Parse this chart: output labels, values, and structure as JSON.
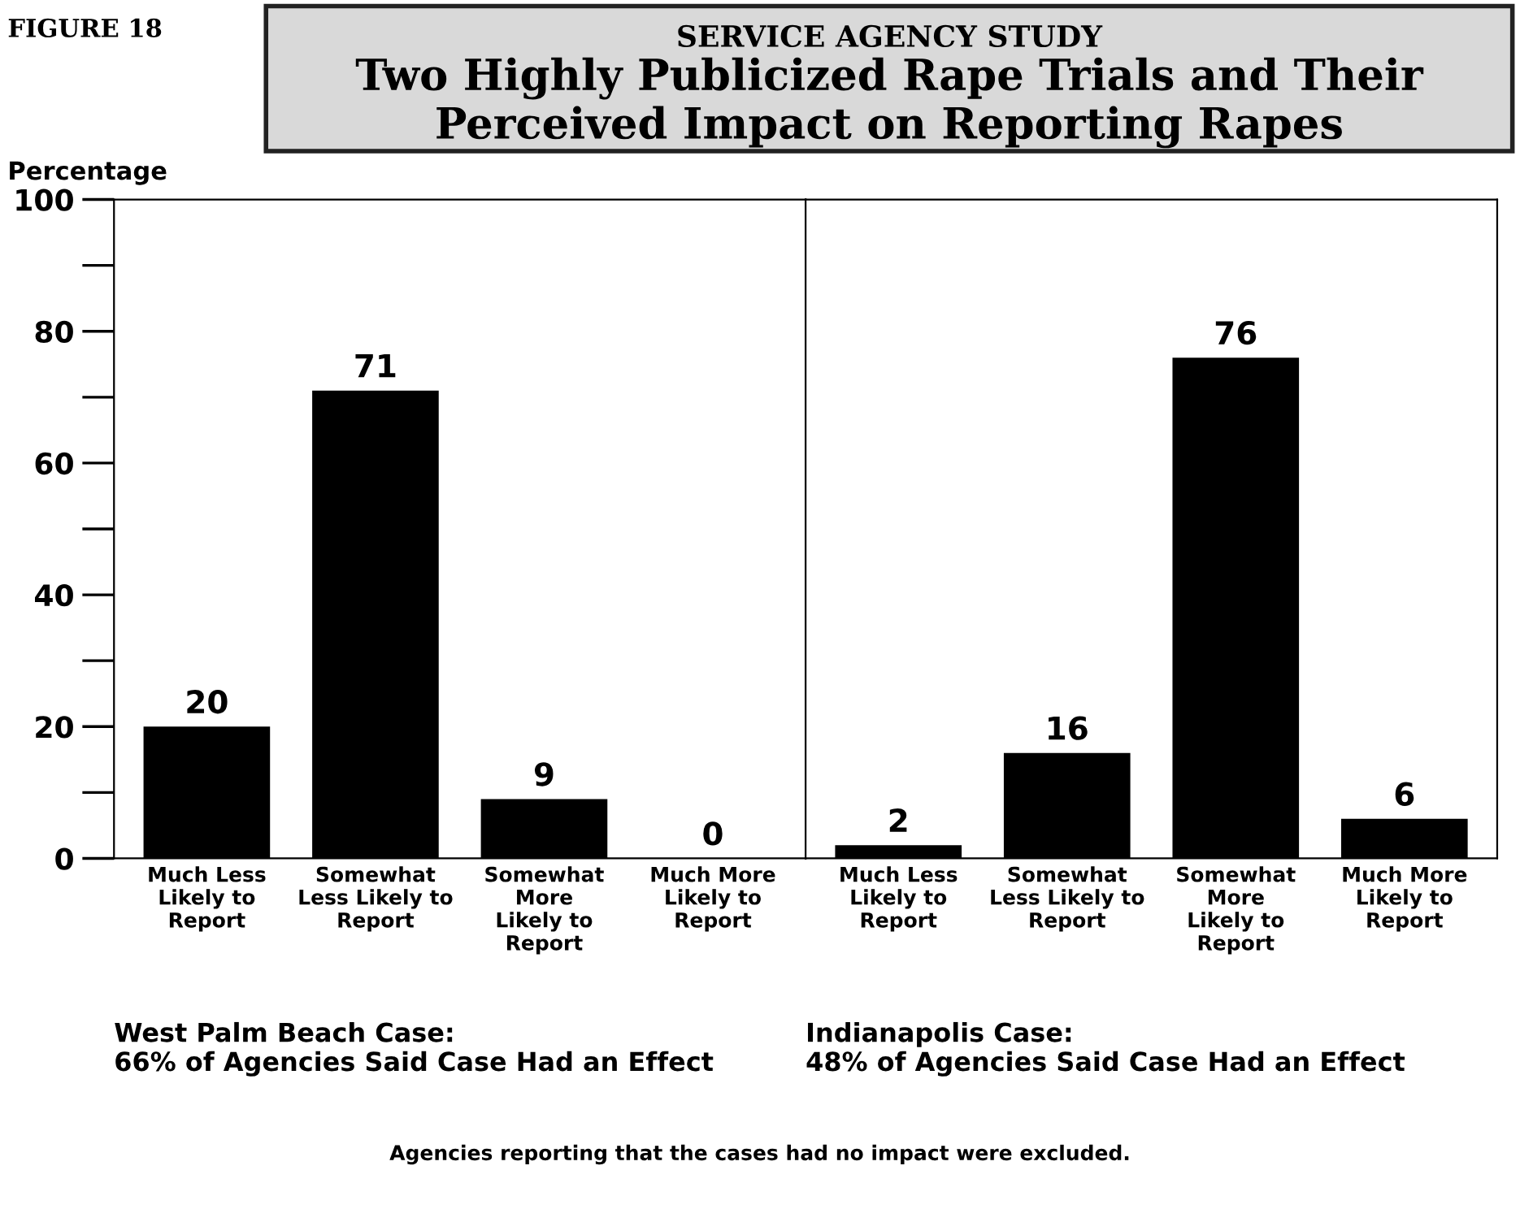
{
  "chart_data": [
    {
      "type": "bar",
      "title": "Two Highly Publicized Rape Trials and Their Perceived Impact on Reporting Rapes",
      "subtitle": "SERVICE AGENCY STUDY",
      "ylabel": "Percentage",
      "xlabel": "West Palm Beach Case:\n66% of Agencies Said Case Had an Effect",
      "annotations": [
        "FIGURE 18",
        "Agencies reporting that the cases had no impact were excluded."
      ],
      "categories": [
        "Much Less\nLikely to\nReport",
        "Somewhat\nLess Likely to\nReport",
        "Somewhat\nMore\nLikely to\nReport",
        "Much More\nLikely to\nReport"
      ],
      "values": [
        20,
        71,
        9,
        0
      ],
      "color": "#000000",
      "data_labels": true,
      "ylim": [
        0,
        100
      ],
      "yticks": [
        0,
        20,
        40,
        60,
        80,
        100
      ],
      "grid": false
    },
    {
      "type": "bar",
      "xlabel": "Indianapolis Case:\n48% of Agencies Said Case Had an Effect",
      "categories": [
        "Much Less\nLikely to\nReport",
        "Somewhat\nLess Likely to\nReport",
        "Somewhat\nMore\nLikely to\nReport",
        "Much More\nLikely to\nReport"
      ],
      "values": [
        2,
        16,
        76,
        6
      ],
      "color": "#000000",
      "data_labels": true,
      "ylim": [
        0,
        100
      ],
      "tick_labels": "x",
      "grid": false
    }
  ]
}
